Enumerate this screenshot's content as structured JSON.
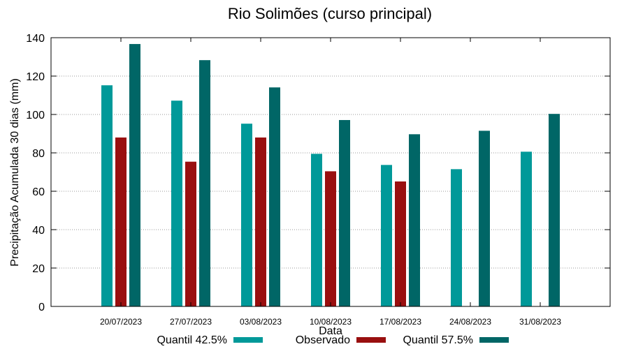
{
  "chart_data": {
    "type": "bar",
    "title": "Rio Solimões (curso principal)",
    "xlabel": "Data",
    "ylabel": "Precipitação Acumulada 30 dias (mm)",
    "ylim": [
      0,
      140
    ],
    "yticks": [
      0,
      20,
      40,
      60,
      80,
      100,
      120,
      140
    ],
    "grid": true,
    "legend_position": "bottom",
    "categories": [
      "20/07/2023",
      "27/07/2023",
      "03/08/2023",
      "10/08/2023",
      "17/08/2023",
      "24/08/2023",
      "31/08/2023"
    ],
    "series": [
      {
        "name": "Quantil 42.5%",
        "color": "#009999",
        "values": [
          115.2,
          107.2,
          95.2,
          79.5,
          73.7,
          71.5,
          80.6
        ]
      },
      {
        "name": "Observado",
        "color": "#990f0f",
        "values": [
          88,
          75.4,
          88,
          70.4,
          65.1,
          null,
          null
        ]
      },
      {
        "name": "Quantil 57.5%",
        "color": "#006666",
        "values": [
          136.7,
          128.3,
          114.1,
          97.1,
          89.7,
          91.5,
          100.3
        ]
      }
    ]
  }
}
